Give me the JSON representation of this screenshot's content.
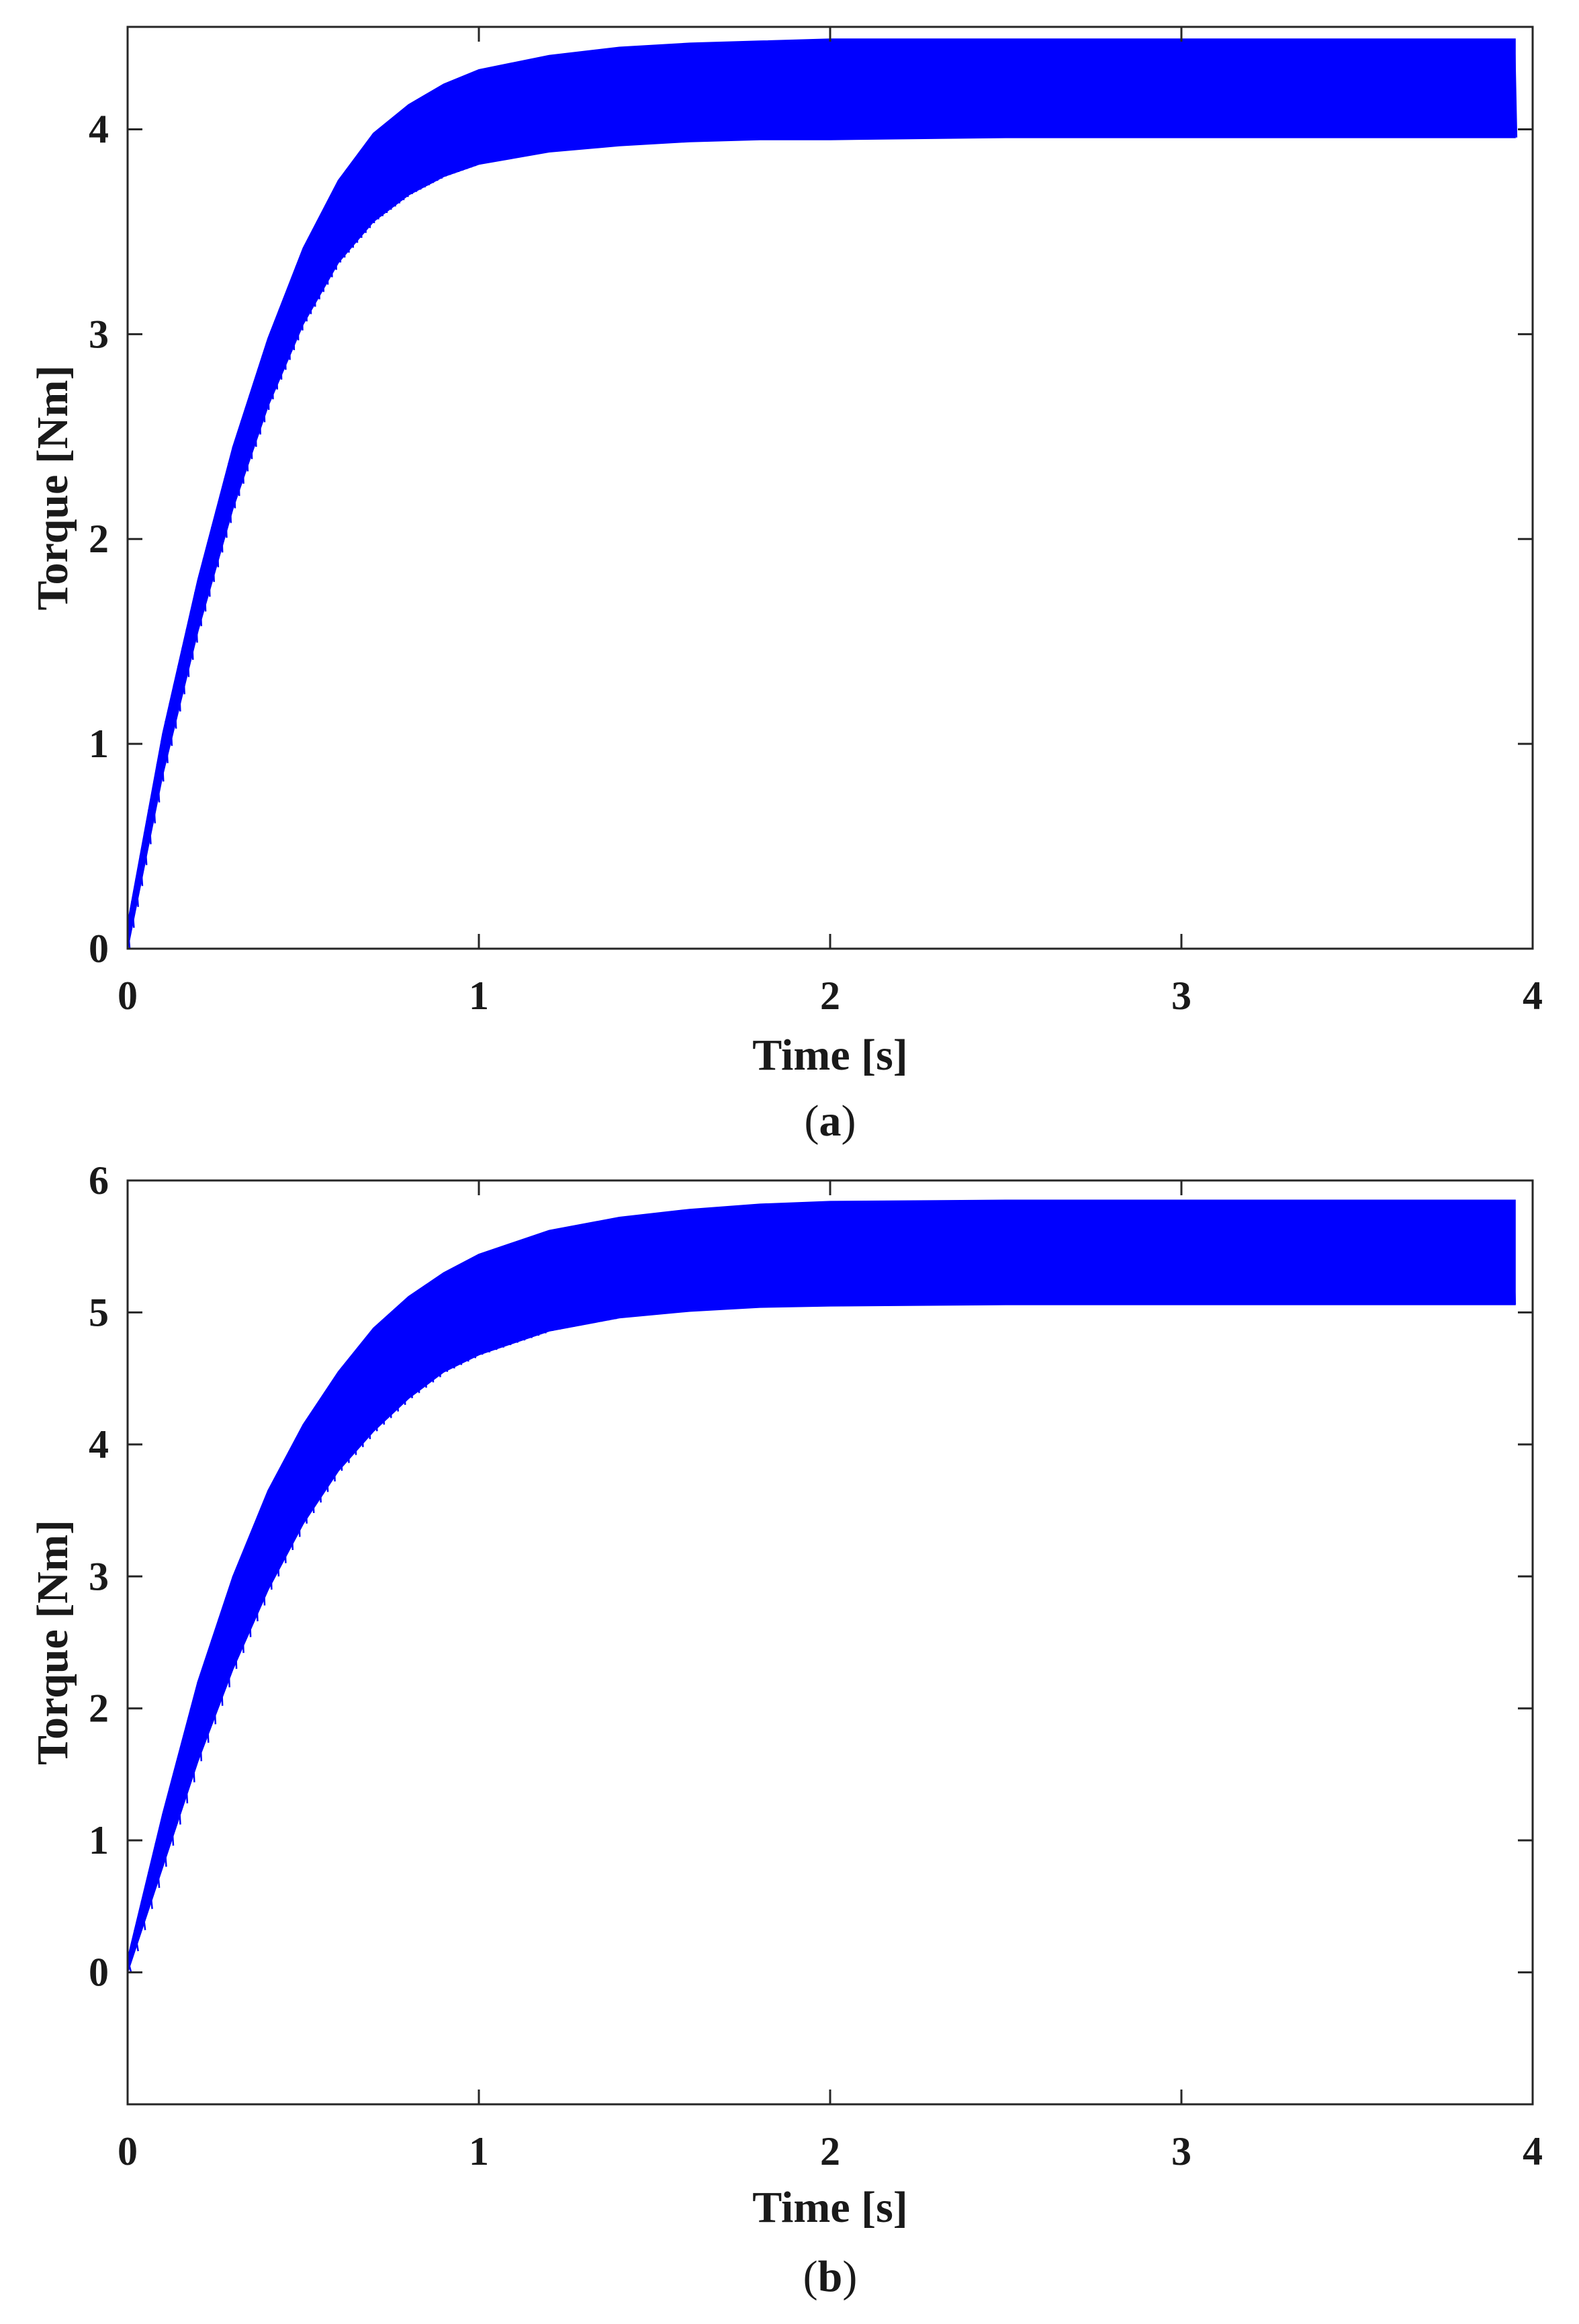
{
  "colors": {
    "series": "#0000ff",
    "axis": "#262626",
    "text": "#1a1a1a"
  },
  "chart_data": [
    {
      "panel": "a",
      "caption": {
        "open": "(",
        "letter": "a",
        "close": ")"
      },
      "type": "line",
      "xlabel": "Time [s]",
      "ylabel": "Torque [Nm]",
      "xlim": [
        0,
        4
      ],
      "ylim": [
        0,
        4.5
      ],
      "xticks": [
        0,
        1,
        2,
        3,
        4
      ],
      "yticks": [
        0,
        1,
        2,
        3,
        4
      ],
      "grid": false,
      "envelope": {
        "x": [
          0.0,
          0.1,
          0.2,
          0.3,
          0.4,
          0.5,
          0.6,
          0.7,
          0.8,
          0.9,
          1.0,
          1.2,
          1.4,
          1.6,
          1.8,
          2.0,
          2.5,
          3.0,
          3.5,
          3.95
        ],
        "upper": [
          0.12,
          1.05,
          1.8,
          2.45,
          2.98,
          3.42,
          3.75,
          3.98,
          4.12,
          4.22,
          4.29,
          4.36,
          4.4,
          4.42,
          4.43,
          4.44,
          4.44,
          4.44,
          4.44,
          4.44
        ],
        "lower": [
          0.0,
          0.85,
          1.55,
          2.15,
          2.65,
          3.05,
          3.35,
          3.55,
          3.68,
          3.77,
          3.83,
          3.89,
          3.92,
          3.94,
          3.95,
          3.95,
          3.96,
          3.96,
          3.96,
          3.96
        ]
      }
    },
    {
      "panel": "b",
      "caption": {
        "open": "(",
        "letter": "b",
        "close": ")"
      },
      "type": "line",
      "xlabel": "Time [s]",
      "ylabel": "Torque [Nm]",
      "xlim": [
        0,
        4
      ],
      "ylim": [
        -1,
        6
      ],
      "xticks": [
        0,
        1,
        2,
        3,
        4
      ],
      "yticks": [
        0,
        1,
        2,
        3,
        4,
        5,
        6
      ],
      "grid": false,
      "envelope": {
        "x": [
          0.0,
          0.1,
          0.2,
          0.3,
          0.4,
          0.5,
          0.6,
          0.7,
          0.8,
          0.9,
          1.0,
          1.2,
          1.4,
          1.6,
          1.8,
          2.0,
          2.5,
          3.0,
          3.5,
          3.95
        ],
        "upper": [
          0.1,
          1.2,
          2.2,
          3.0,
          3.65,
          4.15,
          4.55,
          4.88,
          5.12,
          5.3,
          5.44,
          5.62,
          5.72,
          5.78,
          5.82,
          5.84,
          5.85,
          5.85,
          5.85,
          5.85
        ],
        "lower": [
          0.0,
          0.8,
          1.6,
          2.3,
          2.9,
          3.4,
          3.8,
          4.1,
          4.35,
          4.55,
          4.68,
          4.86,
          4.96,
          5.01,
          5.04,
          5.05,
          5.06,
          5.06,
          5.06,
          5.06
        ]
      }
    }
  ]
}
